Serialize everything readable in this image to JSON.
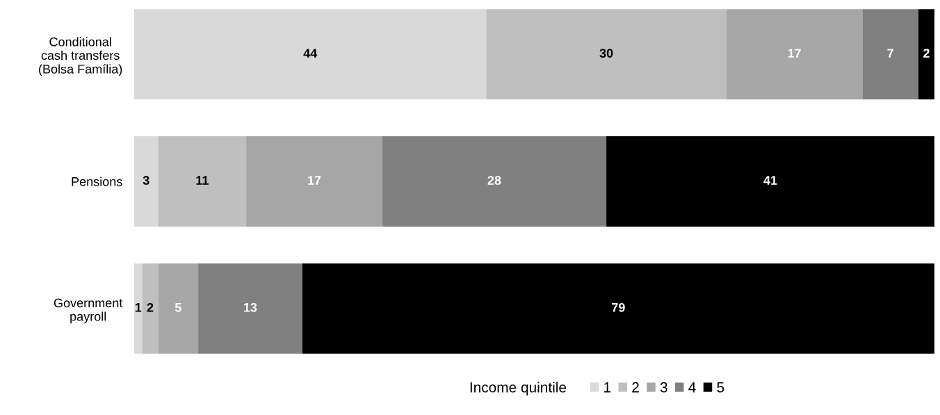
{
  "chart_data": {
    "type": "bar",
    "orientation": "horizontal",
    "stacked": true,
    "categories": [
      "Conditional\ncash transfers\n(Bolsa Família)",
      "Pensions",
      "Government\npayroll"
    ],
    "series": [
      {
        "name": "1",
        "color": "#d9d9d9",
        "values": [
          44,
          3,
          1
        ]
      },
      {
        "name": "2",
        "color": "#bfbfbf",
        "values": [
          30,
          11,
          2
        ]
      },
      {
        "name": "3",
        "color": "#a6a6a6",
        "values": [
          17,
          17,
          5
        ]
      },
      {
        "name": "4",
        "color": "#808080",
        "values": [
          7,
          28,
          13
        ]
      },
      {
        "name": "5",
        "color": "#000000",
        "values": [
          2,
          41,
          79
        ]
      }
    ],
    "xlim": [
      0,
      100
    ],
    "tick_labels": "y",
    "data_labels": true,
    "grid": false,
    "legend": "bottom",
    "legend_title": "Income quintile"
  }
}
